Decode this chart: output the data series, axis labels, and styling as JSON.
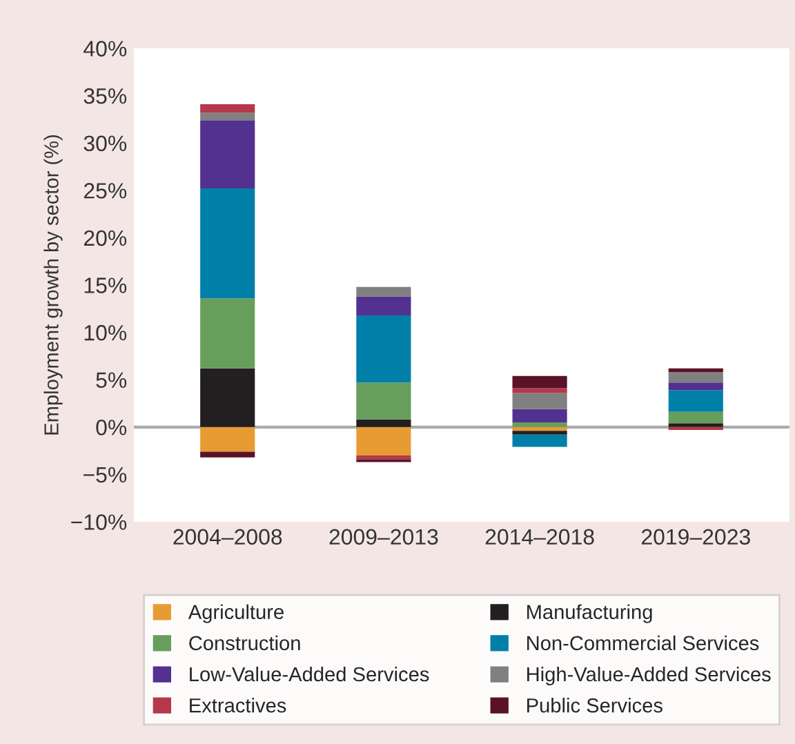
{
  "chart_data": {
    "type": "bar",
    "stacked": true,
    "ylabel": "Employment growth by sector (%)",
    "categories": [
      "2004–2008",
      "2009–2013",
      "2014–2018",
      "2019–2023"
    ],
    "series": [
      {
        "name": "Agriculture",
        "color": "#e89a33",
        "values": [
          -2.6,
          -3.0,
          -0.4,
          0
        ]
      },
      {
        "name": "Manufacturing",
        "color": "#231f20",
        "values": [
          6.2,
          0.8,
          -0.4,
          0.4
        ]
      },
      {
        "name": "Construction",
        "color": "#679e5c",
        "values": [
          7.4,
          3.9,
          0.5,
          1.2
        ]
      },
      {
        "name": "Non-Commercial Services",
        "color": "#0080a8",
        "values": [
          11.6,
          7.1,
          -1.3,
          2.3
        ]
      },
      {
        "name": "Low-Value-Added Services",
        "color": "#523191",
        "values": [
          7.2,
          2.0,
          1.4,
          0.8
        ]
      },
      {
        "name": "High-Value-Added Services",
        "color": "#808080",
        "values": [
          0.8,
          1.0,
          1.7,
          1.1
        ]
      },
      {
        "name": "Extractives",
        "color": "#b5394a",
        "values": [
          0.9,
          -0.4,
          0.5,
          -0.3
        ]
      },
      {
        "name": "Public Services",
        "color": "#5a1227",
        "values": [
          -0.6,
          -0.3,
          1.3,
          0.4
        ]
      }
    ],
    "ylim": [
      -10,
      40
    ],
    "yticks": [
      {
        "value": -10,
        "label": "−10%"
      },
      {
        "value": -5,
        "label": "−5%"
      },
      {
        "value": 0,
        "label": "0%"
      },
      {
        "value": 5,
        "label": "5%"
      },
      {
        "value": 10,
        "label": "10%"
      },
      {
        "value": 15,
        "label": "15%"
      },
      {
        "value": 20,
        "label": "20%"
      },
      {
        "value": 25,
        "label": "25%"
      },
      {
        "value": 30,
        "label": "30%"
      },
      {
        "value": 35,
        "label": "35%"
      },
      {
        "value": 40,
        "label": "40%"
      }
    ],
    "ref_lines": [
      {
        "axis": "y",
        "value": 0,
        "color": "#aaaaaa"
      }
    ],
    "grid": false,
    "legend": "bottom"
  }
}
